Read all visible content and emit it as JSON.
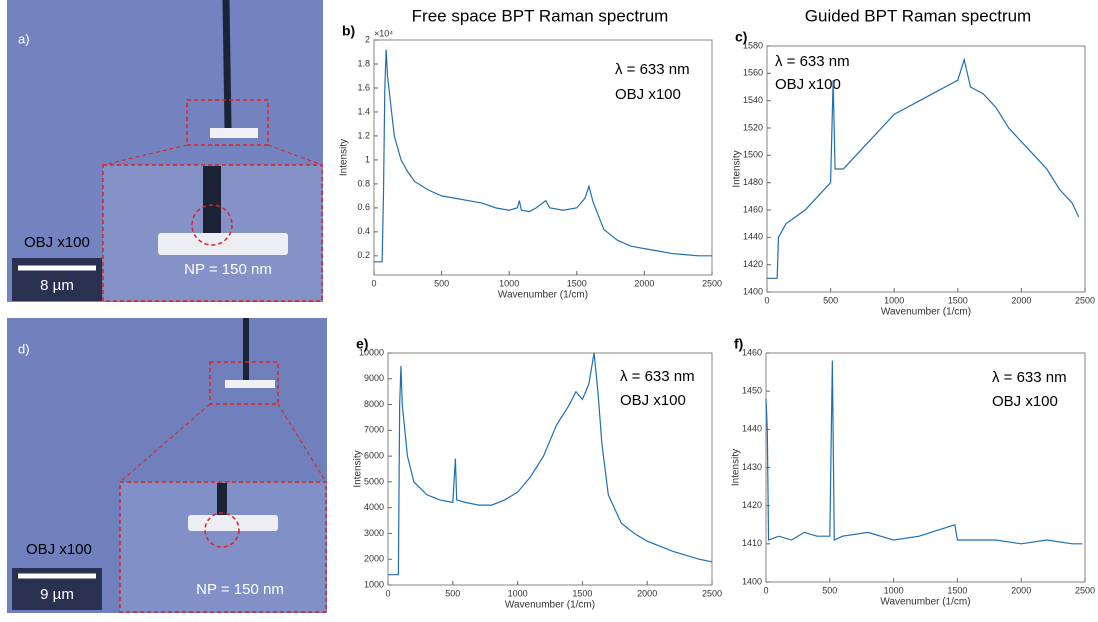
{
  "figure": {
    "headings": [
      "Free space BPT Raman spectrum",
      "Guided BPT Raman spectrum"
    ]
  },
  "photos": [
    {
      "panel": "a)",
      "objective": "OBJ x100",
      "scale_bar": "8 µm",
      "particle": "NP = 150 nm"
    },
    {
      "panel": "d)",
      "objective": "OBJ x100",
      "scale_bar": "9 µm",
      "particle": "NP = 150 nm"
    }
  ],
  "chart_data": [
    {
      "type": "line",
      "panel": "b)",
      "multiplier": "×10⁴",
      "x_label": "Wavenumber (1/cm)",
      "y_label": "Intensity",
      "annotations": [
        "λ = 633 nm",
        "OBJ x100"
      ],
      "color": "#1f6fb4",
      "xlim": [
        0,
        2500
      ],
      "xticks": [
        0,
        500,
        1000,
        1500,
        2000,
        2500
      ],
      "ylim": [
        0.04,
        2
      ],
      "yticks": [
        0.2,
        0.4,
        0.6,
        0.8,
        1,
        1.2,
        1.4,
        1.6,
        1.8,
        2
      ],
      "x": [
        0,
        60,
        70,
        80,
        90,
        100,
        120,
        150,
        200,
        250,
        300,
        400,
        500,
        600,
        700,
        800,
        900,
        1000,
        1060,
        1075,
        1090,
        1150,
        1200,
        1270,
        1300,
        1400,
        1500,
        1560,
        1590,
        1620,
        1700,
        1800,
        1900,
        2000,
        2100,
        2200,
        2300,
        2400,
        2500
      ],
      "values": [
        0.15,
        0.15,
        0.7,
        1.6,
        1.92,
        1.7,
        1.5,
        1.2,
        1.0,
        0.9,
        0.82,
        0.75,
        0.7,
        0.68,
        0.66,
        0.64,
        0.6,
        0.58,
        0.6,
        0.66,
        0.58,
        0.57,
        0.6,
        0.66,
        0.6,
        0.58,
        0.6,
        0.68,
        0.78,
        0.65,
        0.42,
        0.33,
        0.28,
        0.26,
        0.24,
        0.22,
        0.21,
        0.2,
        0.2
      ]
    },
    {
      "type": "line",
      "panel": "c)",
      "x_label": "Wavenumber (1/cm)",
      "y_label": "Intensity",
      "annotations": [
        "λ = 633 nm",
        "OBJ x100"
      ],
      "color": "#1f6fb4",
      "xlim": [
        0,
        2500
      ],
      "xticks": [
        0,
        500,
        1000,
        1500,
        2000,
        2500
      ],
      "ylim": [
        1400,
        1580
      ],
      "yticks": [
        1400,
        1420,
        1440,
        1460,
        1480,
        1500,
        1520,
        1540,
        1560,
        1580
      ],
      "x": [
        0,
        50,
        80,
        90,
        150,
        300,
        400,
        500,
        520,
        535,
        600,
        700,
        800,
        900,
        1000,
        1100,
        1200,
        1300,
        1400,
        1500,
        1550,
        1600,
        1700,
        1800,
        1900,
        2000,
        2100,
        2200,
        2300,
        2400,
        2450
      ],
      "values": [
        1410,
        1410,
        1410,
        1440,
        1450,
        1460,
        1470,
        1480,
        1555,
        1490,
        1490,
        1500,
        1510,
        1520,
        1530,
        1535,
        1540,
        1545,
        1550,
        1555,
        1570,
        1550,
        1545,
        1535,
        1520,
        1510,
        1500,
        1490,
        1475,
        1465,
        1455
      ]
    },
    {
      "type": "line",
      "panel": "e)",
      "x_label": "Wavenumber (1/cm)",
      "y_label": "Intensity",
      "annotations": [
        "λ = 633 nm",
        "OBJ x100"
      ],
      "color": "#1f6fb4",
      "xlim": [
        0,
        2500
      ],
      "xticks": [
        0,
        500,
        1000,
        1500,
        2000,
        2500
      ],
      "ylim": [
        1000,
        10000
      ],
      "yticks": [
        1000,
        2000,
        3000,
        4000,
        5000,
        6000,
        7000,
        8000,
        9000,
        10000
      ],
      "x": [
        0,
        80,
        90,
        100,
        110,
        150,
        200,
        300,
        400,
        500,
        520,
        530,
        600,
        700,
        800,
        900,
        1000,
        1100,
        1200,
        1300,
        1400,
        1450,
        1500,
        1550,
        1590,
        1620,
        1650,
        1700,
        1800,
        1900,
        2000,
        2200,
        2400,
        2500
      ],
      "values": [
        1400,
        1400,
        8000,
        9500,
        8000,
        6000,
        5000,
        4500,
        4300,
        4200,
        5900,
        4300,
        4200,
        4100,
        4100,
        4300,
        4600,
        5200,
        6000,
        7200,
        8000,
        8500,
        8200,
        8800,
        10000,
        8500,
        6500,
        4500,
        3400,
        3000,
        2700,
        2300,
        2000,
        1900
      ]
    },
    {
      "type": "line",
      "panel": "f)",
      "x_label": "Wavenumber (1/cm)",
      "y_label": "Intensity",
      "annotations": [
        "λ = 633 nm",
        "OBJ x100"
      ],
      "color": "#1f6fb4",
      "xlim": [
        0,
        2500
      ],
      "xticks": [
        0,
        500,
        1000,
        1500,
        2000,
        2500
      ],
      "ylim": [
        1400,
        1460
      ],
      "yticks": [
        1400,
        1410,
        1420,
        1430,
        1440,
        1450,
        1460
      ],
      "x": [
        0,
        10,
        20,
        100,
        200,
        300,
        400,
        500,
        520,
        535,
        600,
        800,
        1000,
        1200,
        1480,
        1500,
        1800,
        2000,
        2200,
        2400,
        2480
      ],
      "values": [
        1448,
        1440,
        1411,
        1412,
        1411,
        1413,
        1412,
        1412,
        1458,
        1411,
        1412,
        1413,
        1411,
        1412,
        1415,
        1411,
        1411,
        1410,
        1411,
        1410,
        1410
      ]
    }
  ]
}
